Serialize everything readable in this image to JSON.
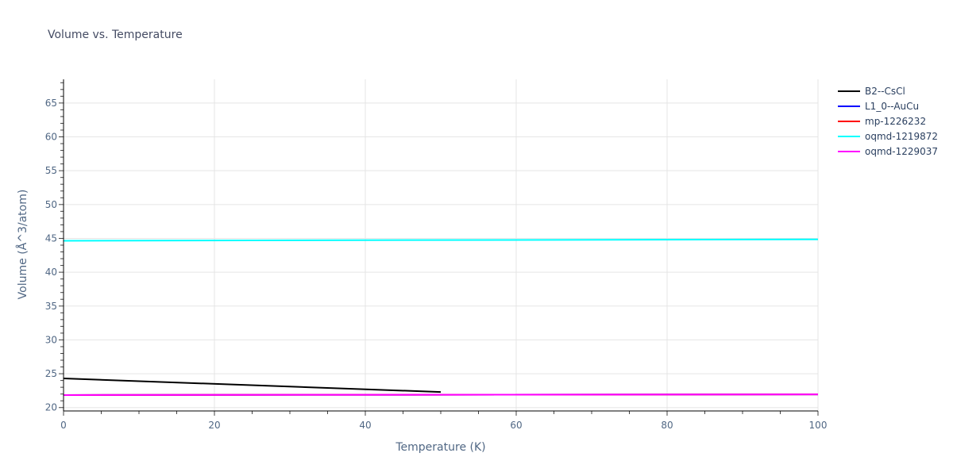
{
  "chart_data": {
    "type": "line",
    "title": "Volume vs. Temperature",
    "xlabel": "Temperature (K)",
    "ylabel": "Volume (Å^3/atom)",
    "xlim": [
      0,
      100
    ],
    "ylim": [
      19.5,
      68.5
    ],
    "x_ticks": [
      0,
      20,
      40,
      60,
      80,
      100
    ],
    "y_ticks": [
      20,
      25,
      30,
      35,
      40,
      45,
      50,
      55,
      60,
      65
    ],
    "grid": true,
    "legend_position": "right",
    "series": [
      {
        "name": "B2--CsCl",
        "color": "#000000",
        "x": [
          0,
          50
        ],
        "values": [
          24.3,
          22.3
        ]
      },
      {
        "name": "L1_0--AuCu",
        "color": "#0000ff",
        "x": [
          0,
          100
        ],
        "values": [
          21.85,
          21.95
        ]
      },
      {
        "name": "mp-1226232",
        "color": "#ff0000",
        "x": [
          0,
          100
        ],
        "values": [
          21.85,
          21.95
        ]
      },
      {
        "name": "oqmd-1219872",
        "color": "#00ffff",
        "x": [
          0,
          100
        ],
        "values": [
          44.65,
          44.85
        ]
      },
      {
        "name": "oqmd-1229037",
        "color": "#ff00ff",
        "x": [
          0,
          100
        ],
        "values": [
          21.85,
          21.95
        ]
      }
    ]
  }
}
